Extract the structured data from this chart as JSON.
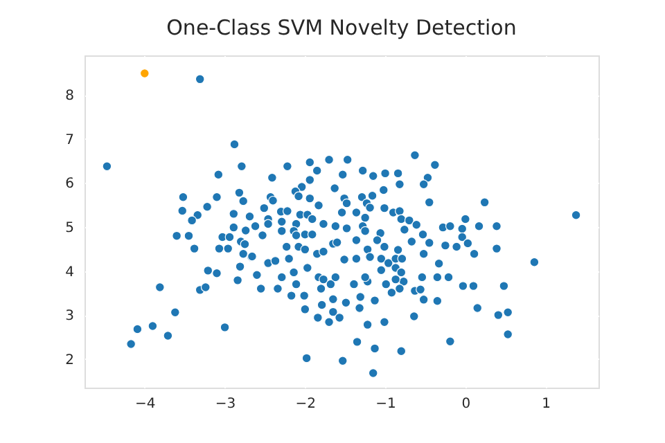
{
  "chart_data": {
    "type": "scatter",
    "title": "One-Class SVM Novelty Detection",
    "xlim": [
      -4.75,
      1.66
    ],
    "ylim": [
      1.35,
      8.9
    ],
    "xticks": [
      -4,
      -3,
      -2,
      -1,
      0,
      1
    ],
    "yticks": [
      2,
      3,
      4,
      5,
      6,
      7,
      8
    ],
    "grid": true,
    "marker": "circle",
    "legend": false,
    "series": [
      {
        "color": "#1f77b4",
        "x": [
          -3.31,
          -4.47,
          -2.88,
          -2.79,
          -3.08,
          -3.52,
          -3.1,
          -2.82,
          -2.77,
          -3.22,
          -3.53,
          -3.34,
          -3.41,
          -2.89,
          -2.69,
          -2.89,
          -2.74,
          -2.62,
          -3.6,
          -3.45,
          -3.38,
          -3.03,
          -2.94,
          -3.07,
          -2.96,
          -2.8,
          -2.75,
          -2.77,
          -2.67,
          -2.81,
          -3.21,
          -3.1,
          -2.6,
          -2.84,
          -2.55,
          -3.81,
          -3.31,
          -3.24,
          -3.62,
          -3.9,
          -4.09,
          -3.71,
          -3.0,
          -4.17,
          0.24,
          1.38,
          0.17,
          0.39,
          0.11,
          0.39,
          0.86,
          0.1,
          0.48,
          0.15,
          0.41,
          0.53,
          0.53,
          -0.63,
          -0.38,
          -0.47,
          -0.52,
          -0.82,
          -1.28,
          -1.15,
          -1.0,
          -0.84,
          -1.02,
          -1.16,
          -1.29,
          -1.23,
          -1.19,
          -0.45,
          -1.01,
          -0.9,
          -0.82,
          -1.25,
          -0.8,
          -0.7,
          -0.61,
          -0.76,
          -1.28,
          -1.06,
          -1.1,
          -1.22,
          -1.01,
          -0.84,
          -0.53,
          -0.45,
          -0.52,
          -0.67,
          -0.28,
          -0.19,
          0.0,
          -0.04,
          -0.04,
          0.03,
          -0.25,
          -0.11,
          -0.33,
          -1.19,
          -1.05,
          -0.96,
          -0.87,
          -0.79,
          -1.05,
          -0.87,
          -0.8,
          -0.77,
          -1.22,
          -0.99,
          -0.87,
          -0.82,
          -0.92,
          -1.13,
          -0.54,
          -0.35,
          -0.21,
          -0.03,
          -0.63,
          -0.56,
          -0.52,
          -0.35,
          -0.64,
          -1.01,
          -1.22,
          -0.19,
          -1.13,
          -0.8,
          -1.15,
          -1.94,
          -1.7,
          -1.47,
          -2.22,
          -1.85,
          -1.53,
          -2.41,
          -1.94,
          -2.04,
          -2.12,
          -2.08,
          -1.94,
          -1.83,
          -1.63,
          -1.51,
          -1.48,
          -2.43,
          -2.4,
          -2.51,
          -2.3,
          -2.22,
          -2.06,
          -1.97,
          -1.54,
          -1.36,
          -2.53,
          -2.46,
          -2.46,
          -2.29,
          -2.29,
          -2.11,
          -2.14,
          -2.11,
          -2.0,
          -1.91,
          -1.91,
          -1.77,
          -1.62,
          -1.48,
          -1.25,
          -2.66,
          -2.46,
          -2.37,
          -2.23,
          -2.08,
          -2.0,
          -1.85,
          -1.77,
          -1.65,
          -1.6,
          -1.51,
          -1.36,
          -1.36,
          -2.29,
          -2.2,
          -2.14,
          -2.11,
          -1.97,
          -1.83,
          -1.77,
          -1.8,
          -1.68,
          -1.62,
          -1.39,
          -1.25,
          -2.34,
          -2.17,
          -2.01,
          -2.0,
          -1.84,
          -1.79,
          -1.65,
          -1.7,
          -1.65,
          -1.57,
          -1.49,
          -1.31,
          -1.32,
          -1.35,
          -1.98,
          -1.53
        ],
        "values": [
          8.36,
          6.38,
          6.88,
          6.38,
          6.19,
          5.68,
          5.68,
          5.78,
          5.59,
          5.46,
          5.37,
          5.27,
          5.15,
          5.3,
          5.24,
          4.99,
          4.92,
          5.02,
          4.8,
          4.8,
          4.51,
          4.77,
          4.77,
          4.51,
          4.51,
          4.67,
          4.61,
          4.39,
          4.32,
          4.1,
          4.01,
          3.95,
          3.91,
          3.79,
          3.6,
          3.63,
          3.57,
          3.63,
          3.06,
          2.75,
          2.68,
          2.53,
          2.72,
          2.34,
          5.56,
          5.27,
          5.02,
          5.02,
          4.39,
          4.51,
          4.2,
          3.66,
          3.66,
          3.16,
          3.0,
          3.06,
          2.56,
          6.63,
          6.41,
          6.12,
          5.97,
          5.97,
          6.28,
          6.16,
          6.22,
          6.22,
          5.84,
          5.71,
          5.68,
          5.54,
          5.44,
          5.56,
          5.43,
          5.33,
          5.36,
          5.21,
          5.18,
          5.15,
          5.05,
          4.94,
          5.02,
          4.86,
          4.7,
          4.49,
          4.55,
          4.48,
          4.83,
          4.64,
          4.39,
          4.67,
          4.99,
          5.02,
          5.18,
          4.96,
          4.77,
          4.63,
          4.58,
          4.55,
          4.17,
          4.32,
          4.28,
          4.18,
          4.28,
          4.28,
          4.02,
          4.07,
          3.97,
          3.76,
          3.76,
          3.7,
          3.81,
          3.6,
          3.51,
          3.33,
          3.86,
          3.86,
          3.86,
          3.66,
          3.55,
          3.58,
          3.35,
          3.32,
          2.97,
          2.84,
          2.78,
          2.4,
          2.24,
          2.18,
          1.68,
          6.47,
          6.53,
          6.53,
          6.38,
          6.28,
          6.19,
          6.12,
          6.07,
          5.91,
          5.81,
          5.7,
          5.65,
          5.49,
          5.88,
          5.65,
          5.54,
          5.68,
          5.6,
          5.43,
          5.35,
          5.36,
          5.28,
          5.28,
          5.33,
          5.33,
          4.81,
          5.18,
          5.07,
          5.12,
          4.91,
          5.07,
          4.91,
          4.81,
          4.83,
          4.83,
          5.18,
          5.07,
          5.02,
          4.97,
          4.91,
          4.33,
          4.18,
          4.23,
          4.55,
          4.55,
          4.49,
          4.39,
          4.44,
          4.62,
          4.65,
          4.26,
          4.7,
          4.28,
          3.86,
          4.28,
          3.97,
          3.7,
          4.07,
          3.86,
          3.81,
          3.6,
          3.7,
          3.86,
          3.7,
          3.86,
          3.6,
          3.44,
          3.44,
          3.13,
          2.94,
          3.23,
          3.36,
          2.84,
          3.07,
          2.94,
          3.28,
          3.41,
          3.16,
          2.39,
          2.02,
          1.96
        ]
      },
      {
        "color": "#ffa500",
        "x": [
          -4.0
        ],
        "values": [
          8.49
        ]
      }
    ]
  }
}
